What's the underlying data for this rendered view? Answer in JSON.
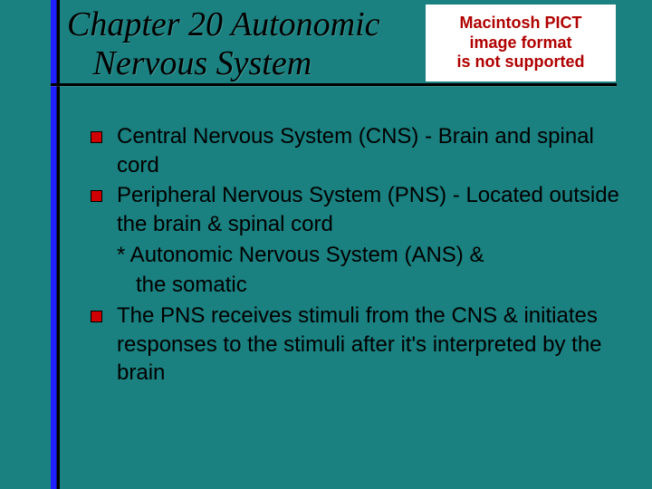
{
  "slide": {
    "background_color": "#1a8080",
    "title_line1": "Chapter 20 Autonomic",
    "title_line2": "Nervous System",
    "title_font": "Times New Roman Italic",
    "title_fontsize": 38,
    "title_color": "#000000",
    "underline_color": "#000000",
    "vertical_bar_colors": [
      "#2020ff",
      "#000000"
    ],
    "bullet_color": "#d00000",
    "bullet_border_color": "#000000",
    "body_fontsize": 24,
    "body_color": "#000000"
  },
  "placeholder": {
    "line1": "Macintosh PICT",
    "line2": "image format",
    "line3": "is not supported",
    "text_color": "#b00000",
    "bg_color": "#ffffff"
  },
  "bullets": {
    "item1": "Central Nervous System (CNS) - Brain and spinal cord",
    "item2": "Peripheral Nervous System (PNS) - Located outside the brain & spinal cord",
    "sub1": "* Autonomic Nervous System (ANS) &",
    "sub1_indent": "the somatic",
    "item3": "The PNS receives stimuli from the CNS & initiates responses to the stimuli after it's interpreted by the brain"
  }
}
